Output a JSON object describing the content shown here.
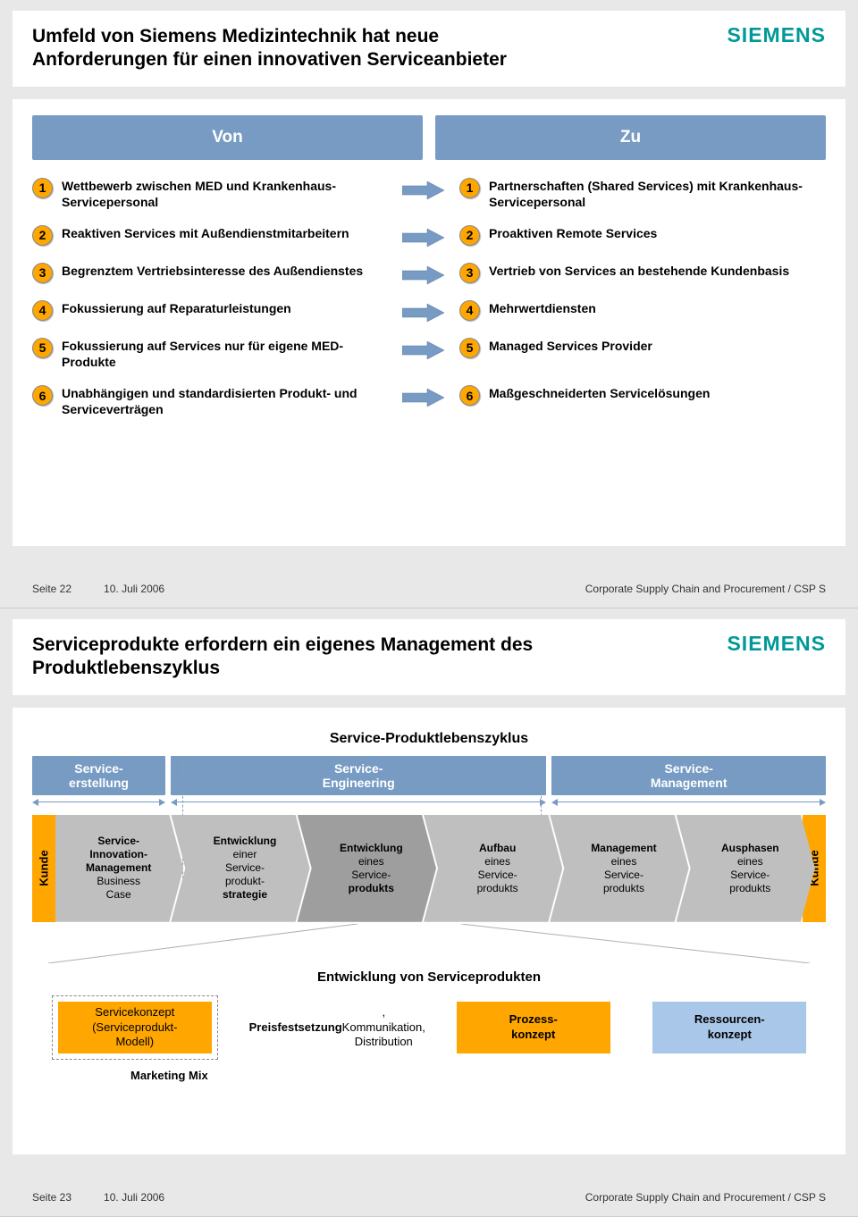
{
  "brand": "SIEMENS",
  "brand_color": "#009999",
  "colors": {
    "slide_bg": "#e8e8e8",
    "header_blue": "#779bc3",
    "badge_orange": "#ffa600",
    "chev_light": "#bfbfbf",
    "chev_dark": "#9e9e9e",
    "concept_blue": "#a9c7e8"
  },
  "slide1": {
    "title": "Umfeld von Siemens Medizintechnik hat neue Anforderungen für einen innovativen Serviceanbieter",
    "col_from": "Von",
    "col_to": "Zu",
    "rows": [
      {
        "n": "1",
        "from": "Wettbewerb zwischen MED und Krankenhaus-Servicepersonal",
        "to": "Partnerschaften (Shared Services) mit Krankenhaus-Servicepersonal"
      },
      {
        "n": "2",
        "from": "Reaktiven Services mit Außendienstmitarbeitern",
        "to": "Proaktiven Remote Services"
      },
      {
        "n": "3",
        "from": "Begrenztem Vertriebsinteresse des Außendienstes",
        "to": "Vertrieb von Services an bestehende Kundenbasis"
      },
      {
        "n": "4",
        "from": "Fokussierung auf Reparaturleistungen",
        "to": "Mehrwertdiensten"
      },
      {
        "n": "5",
        "from": "Fokussierung auf Services nur für eigene MED-Produkte",
        "to": "Managed Services Provider"
      },
      {
        "n": "6",
        "from": "Unabhängigen und standardisier­ten Produkt- und Serviceverträgen",
        "to": "Maßgeschneiderten Servicelösungen"
      }
    ],
    "footer": {
      "page": "Seite 22",
      "date": "10. Juli 2006",
      "right": "Corporate Supply Chain and Procurement / CSP S"
    }
  },
  "slide2": {
    "title": "Serviceprodukte erfordern ein eigenes Management des Produktlebenszyklus",
    "lifecycle_title": "Service-Produktlebenszyklus",
    "phases": [
      {
        "label": "Service-\nerstellung",
        "width_pct": 17
      },
      {
        "label": "Service-\nEngineering",
        "width_pct": 48
      },
      {
        "label": "Service-\nManagement",
        "width_pct": 35
      }
    ],
    "phase_dividers_pct": [
      17,
      65
    ],
    "kunde": "Kunde",
    "chevrons": [
      {
        "bold_lines": [
          "Service-",
          "Innovation-",
          "Management"
        ],
        "normal_lines": [
          "Business",
          "Case"
        ],
        "shade": "light"
      },
      {
        "bold_lines": [
          "Entwicklung"
        ],
        "normal_lines_mid": [
          "einer",
          "Service-",
          "produkt-"
        ],
        "bold_suffix": "strategie",
        "shade": "light"
      },
      {
        "bold_lines": [
          "Entwicklung"
        ],
        "normal_lines_mid": [
          "eines",
          "Service-"
        ],
        "bold_suffix": "produkts",
        "shade": "dark"
      },
      {
        "bold_lines": [
          "Aufbau"
        ],
        "normal_lines_mid": [
          "eines",
          "Service-",
          "produkts"
        ],
        "shade": "light"
      },
      {
        "bold_lines": [
          "Management"
        ],
        "normal_lines_mid": [
          "eines",
          "Service-",
          "produkts"
        ],
        "shade": "light"
      },
      {
        "bold_lines": [
          "Ausphasen"
        ],
        "normal_lines_mid": [
          "eines",
          "Service-",
          "produkts"
        ],
        "shade": "light"
      }
    ],
    "dev_title": "Entwicklung von Serviceprodukten",
    "concepts": [
      {
        "label": "Servicekonzept\n(Serviceprodukt-\nModell)",
        "style": "orange",
        "dashed": true
      },
      {
        "label_bold": "Preisfestsetzung",
        "label_rest": ",\nKommunikation,\nDistribution",
        "style": "white"
      },
      {
        "label_bold": "Prozess-\nkonzept",
        "style": "orange"
      },
      {
        "label_bold": "Ressourcen-\nkonzept",
        "style": "blue"
      }
    ],
    "marketing_mix": "Marketing Mix",
    "footer": {
      "page": "Seite 23",
      "date": "10. Juli 2006",
      "right": "Corporate Supply Chain and Procurement / CSP S"
    }
  }
}
